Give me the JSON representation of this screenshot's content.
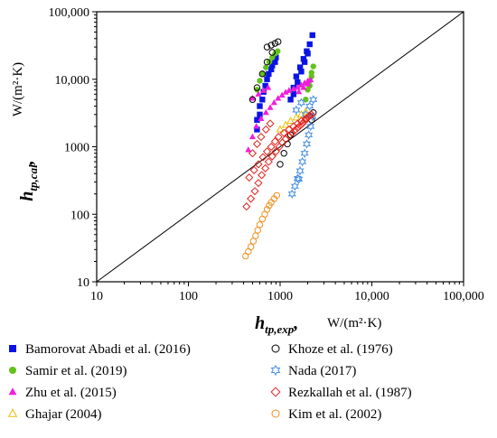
{
  "chart_data": {
    "type": "scatter",
    "xscale": "log",
    "yscale": "log",
    "xlim": [
      10,
      100000
    ],
    "ylim": [
      10,
      100000
    ],
    "x_ticks": [
      "10",
      "100",
      "1000",
      "10,000",
      "100,000"
    ],
    "y_ticks": [
      "10",
      "100",
      "1000",
      "10,000",
      "100,000"
    ],
    "xlabel": {
      "symbol": "h",
      "subscript": "tp,exp",
      "unit": "W/(m²·K)"
    },
    "ylabel": {
      "symbol": "h",
      "subscript": "tp,cal",
      "unit": "W/(m²·K)"
    },
    "reference_line": "y = x",
    "grid": false,
    "legend_position": "bottom",
    "series": [
      {
        "name": "Bamorovat Abadi et al. (2016)",
        "color": "#0a14e6",
        "marker": "square-filled",
        "x": [
          560,
          600,
          640,
          690,
          750,
          820,
          900,
          560,
          600,
          660,
          720,
          800,
          880,
          1300,
          1400,
          1500,
          1650,
          1800,
          1950,
          2100,
          2250,
          1400,
          1550,
          1700,
          1850,
          2000
        ],
        "y": [
          1800,
          3000,
          5000,
          8000,
          12000,
          16000,
          21000,
          2500,
          4000,
          6500,
          10000,
          14000,
          18000,
          5000,
          7500,
          11000,
          15000,
          20000,
          26000,
          33000,
          45000,
          6000,
          9000,
          13000,
          18000,
          24000
        ]
      },
      {
        "name": "Samir et al. (2019)",
        "color": "#62c21c",
        "marker": "circle-filled",
        "x": [
          560,
          600,
          650,
          700,
          760,
          820,
          880,
          940,
          1900,
          2000,
          2100,
          2200,
          2300,
          2100,
          2200
        ],
        "y": [
          7000,
          9500,
          12000,
          15000,
          18000,
          21000,
          24000,
          26000,
          5000,
          7000,
          9500,
          12500,
          15500,
          8000,
          11000
        ]
      },
      {
        "name": "Zhu et al. (2015)",
        "color": "#f01eda",
        "marker": "triangle-filled",
        "x": [
          450,
          500,
          550,
          620,
          700,
          780,
          860,
          950,
          1050,
          1150,
          1250,
          1400,
          1550,
          1700,
          1850,
          2000,
          2150,
          500,
          580,
          660,
          740,
          1600,
          1800,
          2000
        ],
        "y": [
          900,
          1400,
          2000,
          2600,
          3200,
          3800,
          4500,
          5200,
          5800,
          6400,
          6800,
          7200,
          7600,
          8200,
          8800,
          9400,
          9800,
          5200,
          6000,
          6800,
          7500,
          6500,
          7500,
          8500
        ]
      },
      {
        "name": "Ghajar (2004)",
        "color": "#e8c000",
        "marker": "triangle-open",
        "x": [
          1000,
          1150,
          1300,
          1500,
          1700,
          1900
        ],
        "y": [
          1800,
          2100,
          2400,
          2700,
          3000,
          3300
        ]
      },
      {
        "name": "Khoze et al. (1976)",
        "color": "#000000",
        "marker": "circle-open",
        "x": [
          500,
          560,
          640,
          720,
          820,
          720,
          800,
          880,
          950,
          1000,
          1100,
          1200,
          1300,
          2200,
          2300
        ],
        "y": [
          5000,
          7500,
          12000,
          18000,
          25000,
          30000,
          32000,
          34000,
          36000,
          550,
          800,
          1100,
          1500,
          2500,
          3200
        ]
      },
      {
        "name": "Nada (2017)",
        "color": "#4a90e2",
        "marker": "star-open",
        "x": [
          1350,
          1450,
          1550,
          1650,
          1750,
          1850,
          1950,
          2050,
          2150,
          2250,
          1500,
          1700,
          1900,
          2100,
          2300,
          1600
        ],
        "y": [
          200,
          260,
          340,
          440,
          600,
          800,
          1100,
          1500,
          2000,
          2800,
          3500,
          4500,
          3000,
          4000,
          5000,
          330
        ]
      },
      {
        "name": "Rezkallah et al. (1987)",
        "color": "#e2221c",
        "marker": "diamond-open",
        "x": [
          430,
          480,
          530,
          580,
          630,
          690,
          750,
          820,
          900,
          980,
          1060,
          1150,
          1250,
          1350,
          1450,
          1550,
          1650,
          1750,
          1850,
          1950,
          2050,
          2200,
          460,
          520,
          580,
          650,
          720,
          800,
          880,
          960,
          1100,
          1250,
          1400,
          1550,
          1700,
          1900,
          2100,
          500,
          560,
          620,
          700,
          780
        ],
        "y": [
          130,
          170,
          220,
          290,
          380,
          480,
          600,
          720,
          850,
          1000,
          1150,
          1300,
          1450,
          1600,
          1750,
          1900,
          2050,
          2200,
          2400,
          2600,
          2800,
          3000,
          350,
          450,
          550,
          700,
          850,
          1000,
          1200,
          1400,
          1600,
          1800,
          2000,
          2200,
          2400,
          2600,
          2900,
          800,
          1100,
          1400,
          1800,
          2200
        ]
      },
      {
        "name": "Kim et al. (2002)",
        "color": "#f0901e",
        "marker": "circle-open",
        "x": [
          420,
          450,
          480,
          510,
          540,
          570,
          600,
          640,
          680,
          720,
          760,
          800,
          860,
          920
        ],
        "y": [
          24,
          28,
          33,
          40,
          48,
          58,
          70,
          85,
          100,
          118,
          135,
          150,
          170,
          190
        ]
      }
    ]
  },
  "legend": [
    {
      "label": "Bamorovat Abadi et al. (2016)"
    },
    {
      "label": "Khoze et al. (1976)"
    },
    {
      "label": "Samir et al. (2019)"
    },
    {
      "label": "Nada (2017)"
    },
    {
      "label": "Zhu et al. (2015)"
    },
    {
      "label": "Rezkallah et al. (1987)"
    },
    {
      "label": "Ghajar (2004)"
    },
    {
      "label": "Kim et al. (2002)"
    }
  ]
}
